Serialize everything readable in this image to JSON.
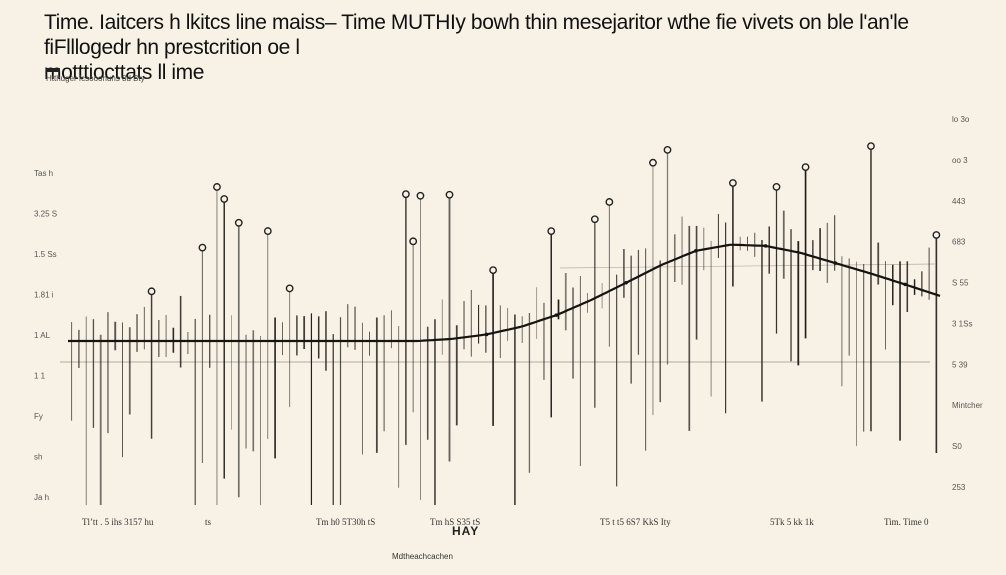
{
  "chart_data": {
    "type": "line",
    "title": "Time. Iaitcers h lkitcs line maiss– Time MUTHIy bowh thin mesejaritor wthe fie vivets on ble l'an'le fiFlllogedr hn prestcrition oe l\nmotttiocttats  ll ime",
    "subtitle": "Htthuger fcsooohuns  3d Bty",
    "xlabel": "HAY",
    "footer_note": "Mdtheachcachen",
    "ylim": [
      0,
      100
    ],
    "xlim": [
      0,
      100
    ],
    "grid": false,
    "x": [
      0,
      10,
      20,
      30,
      40,
      44,
      48,
      52,
      56,
      60,
      64,
      68,
      72,
      76,
      80,
      84,
      88,
      92,
      96,
      100
    ],
    "series": [
      {
        "values": [
          40,
          40,
          40,
          40,
          40,
          40.5,
          41.6,
          43.5,
          46.3,
          50,
          54.2,
          58.5,
          62,
          63.5,
          63.2,
          61.5,
          59,
          56.5,
          53.8,
          51
        ]
      }
    ],
    "left_tick_labels": [
      "Tas  h",
      "3.25  S",
      "1.5  Ss",
      "1.81  i",
      "1  AL",
      "1  1",
      "Fy",
      "sh",
      "Ja  h"
    ],
    "right_tick_labels": [
      "lo 3o",
      "oo 3",
      "443",
      "683",
      "S 55",
      "3 1Ss",
      "5 39",
      "Mintcher",
      "S0",
      "253"
    ],
    "x_tick_labels": [
      "Tl’tt    .  5 ihs   3157  hu",
      "ts",
      "Tm      h0    5T30h      tS",
      "Tm    hS    S35    tS",
      "T5    t   t5   6S7   KkS   Ity",
      "5Tk   5   kk    1k",
      "Tim.  Time    0"
    ]
  },
  "colors": {
    "background": "#f8f2e6",
    "line": "#151412",
    "stem": "#1f1d1a"
  }
}
